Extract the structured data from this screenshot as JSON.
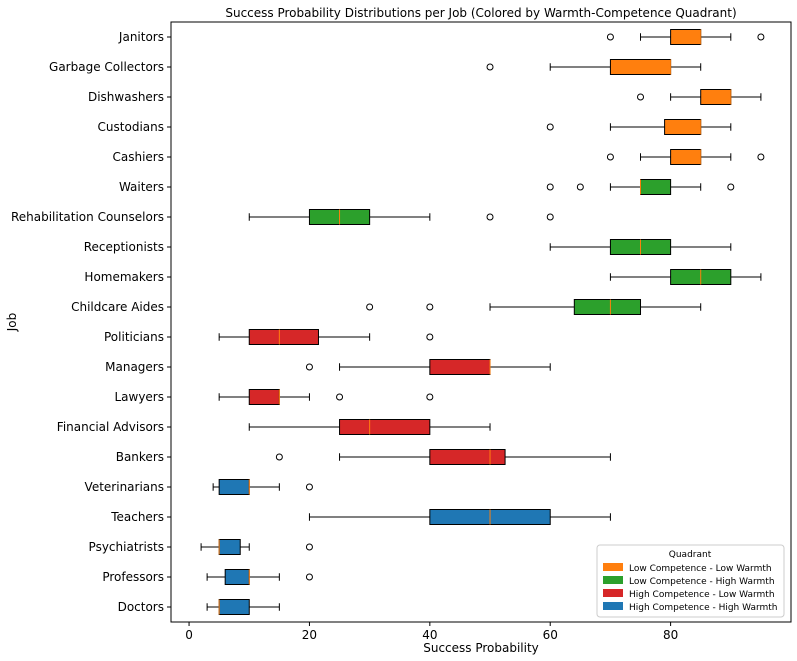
{
  "chart_data": {
    "type": "boxplot",
    "orientation": "horizontal",
    "title": "Success Probability Distributions per Job (Colored by Warmth-Competence Quadrant)",
    "xlabel": "Success Probability",
    "ylabel": "Job",
    "xlim": [
      -3,
      100
    ],
    "xticks": [
      0,
      20,
      40,
      60,
      80
    ],
    "grid": false,
    "legend": {
      "title": "Quadrant",
      "position": "lower-right",
      "entries": [
        {
          "quadrant": "LCLW",
          "label": "Low Competence - Low Warmth"
        },
        {
          "quadrant": "LCHW",
          "label": "Low Competence - High Warmth"
        },
        {
          "quadrant": "HCLW",
          "label": "High Competence - Low Warmth"
        },
        {
          "quadrant": "HCHW",
          "label": "High Competence - High Warmth"
        }
      ]
    },
    "colors": {
      "LCLW": "#ff7f0e",
      "LCHW": "#2ca02c",
      "HCLW": "#d62728",
      "HCHW": "#1f77b4",
      "median": "#ff7f0e"
    },
    "jobs": [
      {
        "name": "Janitors",
        "quadrant": "LCLW",
        "whislo": 75,
        "q1": 80,
        "med": 85,
        "q3": 85,
        "whishi": 90,
        "fliers": [
          70,
          95
        ]
      },
      {
        "name": "Garbage Collectors",
        "quadrant": "LCLW",
        "whislo": 60,
        "q1": 70,
        "med": 80,
        "q3": 80,
        "whishi": 85,
        "fliers": [
          50
        ]
      },
      {
        "name": "Dishwashers",
        "quadrant": "LCLW",
        "whislo": 80,
        "q1": 85,
        "med": 90,
        "q3": 90,
        "whishi": 95,
        "fliers": [
          75
        ]
      },
      {
        "name": "Custodians",
        "quadrant": "LCLW",
        "whislo": 70,
        "q1": 79,
        "med": 85,
        "q3": 85,
        "whishi": 90,
        "fliers": [
          60
        ]
      },
      {
        "name": "Cashiers",
        "quadrant": "LCLW",
        "whislo": 75,
        "q1": 80,
        "med": 85,
        "q3": 85,
        "whishi": 90,
        "fliers": [
          70,
          95
        ]
      },
      {
        "name": "Waiters",
        "quadrant": "LCHW",
        "whislo": 70,
        "q1": 75,
        "med": 75,
        "q3": 80,
        "whishi": 85,
        "fliers": [
          60,
          65,
          90
        ]
      },
      {
        "name": "Rehabilitation Counselors",
        "quadrant": "LCHW",
        "whislo": 10,
        "q1": 20,
        "med": 25,
        "q3": 30,
        "whishi": 40,
        "fliers": [
          50,
          60
        ]
      },
      {
        "name": "Receptionists",
        "quadrant": "LCHW",
        "whislo": 60,
        "q1": 70,
        "med": 75,
        "q3": 80,
        "whishi": 90,
        "fliers": []
      },
      {
        "name": "Homemakers",
        "quadrant": "LCHW",
        "whislo": 70,
        "q1": 80,
        "med": 85,
        "q3": 90,
        "whishi": 95,
        "fliers": []
      },
      {
        "name": "Childcare Aides",
        "quadrant": "LCHW",
        "whislo": 50,
        "q1": 64,
        "med": 70,
        "q3": 75,
        "whishi": 85,
        "fliers": [
          30,
          40
        ]
      },
      {
        "name": "Politicians",
        "quadrant": "HCLW",
        "whislo": 5,
        "q1": 10,
        "med": 15,
        "q3": 21.5,
        "whishi": 30,
        "fliers": [
          40
        ]
      },
      {
        "name": "Managers",
        "quadrant": "HCLW",
        "whislo": 25,
        "q1": 40,
        "med": 50,
        "q3": 50,
        "whishi": 60,
        "fliers": [
          20
        ]
      },
      {
        "name": "Lawyers",
        "quadrant": "HCLW",
        "whislo": 5,
        "q1": 10,
        "med": 15,
        "q3": 15,
        "whishi": 20,
        "fliers": [
          25,
          40
        ]
      },
      {
        "name": "Financial Advisors",
        "quadrant": "HCLW",
        "whislo": 10,
        "q1": 25,
        "med": 30,
        "q3": 40,
        "whishi": 50,
        "fliers": []
      },
      {
        "name": "Bankers",
        "quadrant": "HCLW",
        "whislo": 25,
        "q1": 40,
        "med": 50,
        "q3": 52.5,
        "whishi": 70,
        "fliers": [
          15
        ]
      },
      {
        "name": "Veterinarians",
        "quadrant": "HCHW",
        "whislo": 4,
        "q1": 5,
        "med": 10,
        "q3": 10,
        "whishi": 15,
        "fliers": [
          20
        ]
      },
      {
        "name": "Teachers",
        "quadrant": "HCHW",
        "whislo": 20,
        "q1": 40,
        "med": 50,
        "q3": 60,
        "whishi": 70,
        "fliers": []
      },
      {
        "name": "Psychiatrists",
        "quadrant": "HCHW",
        "whislo": 2,
        "q1": 5,
        "med": 5,
        "q3": 8.5,
        "whishi": 10,
        "fliers": [
          20
        ]
      },
      {
        "name": "Professors",
        "quadrant": "HCHW",
        "whislo": 3,
        "q1": 6,
        "med": 10,
        "q3": 10,
        "whishi": 15,
        "fliers": [
          20
        ]
      },
      {
        "name": "Doctors",
        "quadrant": "HCHW",
        "whislo": 3,
        "q1": 5,
        "med": 5,
        "q3": 10,
        "whishi": 15,
        "fliers": []
      }
    ]
  }
}
